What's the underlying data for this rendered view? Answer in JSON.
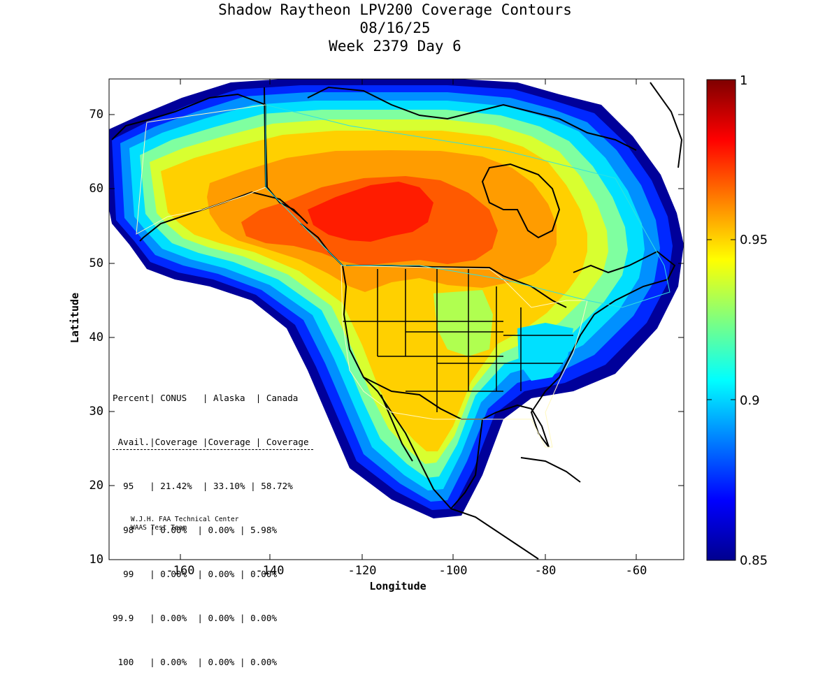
{
  "title": {
    "line1": "Shadow Raytheon LPV200 Coverage Contours",
    "line2": "08/16/25",
    "line3": "Week 2379 Day 6"
  },
  "axes": {
    "xlabel": "Longitude",
    "ylabel": "Latitude",
    "x_ticks": [
      "-160",
      "-140",
      "-120",
      "-100",
      "-80",
      "-60"
    ],
    "y_ticks": [
      "10",
      "20",
      "30",
      "40",
      "50",
      "60",
      "70"
    ],
    "xlim": [
      -175,
      -50
    ],
    "ylim": [
      10,
      75
    ]
  },
  "colorbar": {
    "labels": [
      "1",
      "0.95",
      "0.9",
      "0.85"
    ],
    "range": [
      0.85,
      1
    ],
    "colormap": "jet"
  },
  "stats": {
    "header1": "Percent| CONUS   | Alaska  | Canada",
    "header2": " Avail.|Coverage |Coverage | Coverage",
    "rows": [
      "  95   | 21.42%  | 33.10% | 58.72%",
      "  98   | 0.00%  | 0.00% | 5.98%",
      "  99   | 0.00%  | 0.00% | 0.00%",
      "99.9   | 0.00%  | 0.00% | 0.00%",
      " 100   | 0.00%  | 0.00% | 0.00%"
    ]
  },
  "credit": {
    "line1": "W.J.H. FAA Technical Center",
    "line2": "WAAS Test Team"
  },
  "chart_data": {
    "type": "heatmap",
    "title": "Shadow Raytheon LPV200 Coverage Contours",
    "xlabel": "Longitude",
    "ylabel": "Latitude",
    "xlim": [
      -175,
      -50
    ],
    "ylim": [
      10,
      75
    ],
    "colorbar_range": [
      0.85,
      1
    ],
    "coverage_table": {
      "columns": [
        "Percent Avail.",
        "CONUS Coverage",
        "Alaska Coverage",
        "Canada Coverage"
      ],
      "rows": [
        [
          "95",
          "21.42%",
          "33.10%",
          "58.72%"
        ],
        [
          "98",
          "0.00%",
          "0.00%",
          "5.98%"
        ],
        [
          "99",
          "0.00%",
          "0.00%",
          "0.00%"
        ],
        [
          "99.9",
          "0.00%",
          "0.00%",
          "0.00%"
        ],
        [
          "100",
          "0.00%",
          "0.00%",
          "0.00%"
        ]
      ]
    }
  }
}
